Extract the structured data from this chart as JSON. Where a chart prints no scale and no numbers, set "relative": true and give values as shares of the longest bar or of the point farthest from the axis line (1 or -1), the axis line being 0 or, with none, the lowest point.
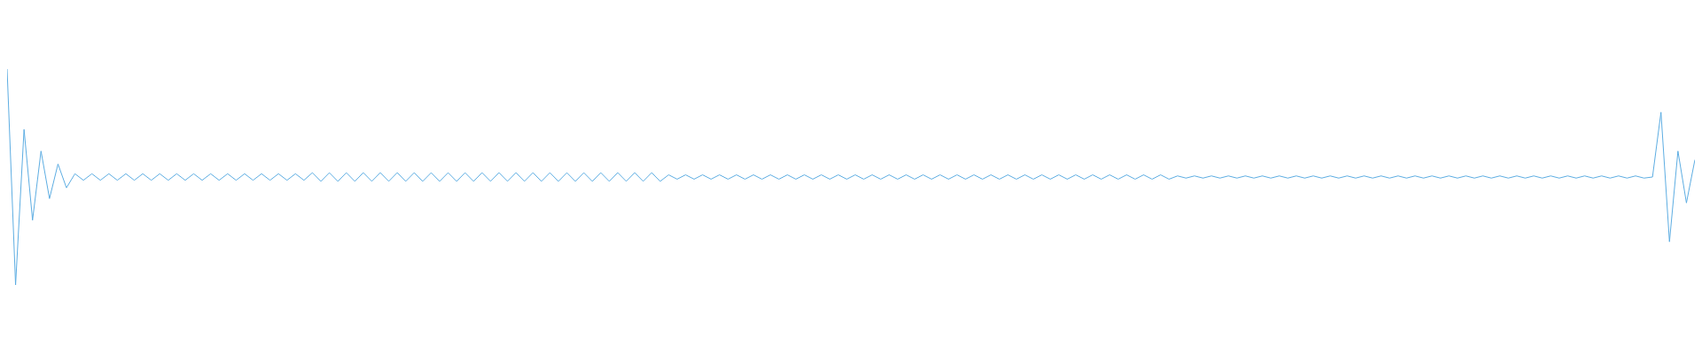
{
  "chart_data": {
    "type": "line",
    "relative": true,
    "legend": false,
    "marker": "none",
    "line_style": "solid",
    "categories": [
      null,
      null,
      null,
      null,
      null,
      null,
      null,
      null,
      null,
      null,
      null,
      null,
      null,
      null,
      null,
      null,
      null,
      null,
      null,
      null,
      null,
      null,
      null,
      null,
      null,
      null,
      null,
      null,
      null,
      null,
      null,
      null,
      null,
      null,
      null,
      null,
      null,
      null,
      null,
      null,
      null,
      null,
      null,
      null,
      null,
      null,
      null,
      null,
      null,
      null,
      null,
      null,
      null,
      null,
      null,
      null,
      null,
      null,
      null,
      null,
      null,
      null,
      null,
      null,
      null,
      null,
      null,
      null,
      null,
      null,
      null,
      null,
      null,
      null,
      null,
      null,
      null,
      null,
      null,
      null,
      null,
      null,
      null,
      null,
      null,
      null,
      null,
      null,
      null,
      null,
      null,
      null,
      null,
      null,
      null,
      null,
      null,
      null,
      null,
      null,
      null,
      null,
      null,
      null,
      null,
      null,
      null,
      null,
      null,
      null,
      null,
      null,
      null,
      null,
      null,
      null,
      null,
      null,
      null,
      null,
      null,
      null,
      null,
      null,
      null,
      null,
      null,
      null,
      null,
      null,
      null,
      null,
      null,
      null,
      null,
      null,
      null,
      null,
      null,
      null,
      null,
      null,
      null,
      null,
      null,
      null,
      null,
      null,
      null,
      null,
      null,
      null,
      null,
      null,
      null,
      null,
      null,
      null,
      null,
      null,
      null,
      null,
      null,
      null,
      null,
      null,
      null,
      null,
      null,
      null,
      null,
      null,
      null,
      null,
      null,
      null,
      null,
      null,
      null,
      null,
      null,
      null,
      null,
      null,
      null,
      null,
      null,
      null,
      null,
      null,
      null,
      null,
      null,
      null,
      null,
      null,
      null,
      null,
      null,
      null
    ],
    "series": [
      {
        "color": "#5dade2",
        "values": [
          1.0,
          0.0,
          0.72,
          0.3,
          0.62,
          0.4,
          0.56,
          0.45,
          0.515,
          0.485,
          0.515,
          0.485,
          0.515,
          0.485,
          0.515,
          0.485,
          0.515,
          0.485,
          0.515,
          0.485,
          0.515,
          0.485,
          0.515,
          0.485,
          0.515,
          0.485,
          0.515,
          0.485,
          0.515,
          0.485,
          0.515,
          0.485,
          0.515,
          0.485,
          0.515,
          0.485,
          0.52,
          0.48,
          0.52,
          0.48,
          0.52,
          0.48,
          0.52,
          0.48,
          0.52,
          0.48,
          0.52,
          0.48,
          0.52,
          0.48,
          0.52,
          0.48,
          0.52,
          0.48,
          0.52,
          0.48,
          0.52,
          0.48,
          0.52,
          0.48,
          0.52,
          0.48,
          0.52,
          0.48,
          0.52,
          0.48,
          0.52,
          0.48,
          0.52,
          0.48,
          0.52,
          0.48,
          0.52,
          0.48,
          0.52,
          0.48,
          0.52,
          0.48,
          0.51,
          0.49,
          0.51,
          0.49,
          0.51,
          0.49,
          0.51,
          0.49,
          0.51,
          0.49,
          0.51,
          0.49,
          0.51,
          0.49,
          0.51,
          0.49,
          0.51,
          0.49,
          0.51,
          0.49,
          0.51,
          0.49,
          0.51,
          0.49,
          0.51,
          0.49,
          0.51,
          0.49,
          0.51,
          0.49,
          0.51,
          0.49,
          0.51,
          0.49,
          0.51,
          0.49,
          0.51,
          0.49,
          0.51,
          0.49,
          0.51,
          0.49,
          0.51,
          0.49,
          0.51,
          0.49,
          0.51,
          0.49,
          0.51,
          0.49,
          0.51,
          0.49,
          0.51,
          0.49,
          0.51,
          0.49,
          0.51,
          0.49,
          0.51,
          0.49,
          0.505,
          0.495,
          0.505,
          0.495,
          0.505,
          0.495,
          0.505,
          0.495,
          0.505,
          0.495,
          0.505,
          0.495,
          0.505,
          0.495,
          0.505,
          0.495,
          0.505,
          0.495,
          0.505,
          0.495,
          0.505,
          0.495,
          0.505,
          0.495,
          0.505,
          0.495,
          0.505,
          0.495,
          0.505,
          0.495,
          0.505,
          0.495,
          0.505,
          0.495,
          0.505,
          0.495,
          0.505,
          0.495,
          0.505,
          0.495,
          0.505,
          0.495,
          0.505,
          0.495,
          0.505,
          0.495,
          0.505,
          0.495,
          0.505,
          0.495,
          0.505,
          0.495,
          0.505,
          0.495,
          0.505,
          0.495,
          0.5,
          0.8,
          0.2,
          0.62,
          0.38,
          0.58
        ]
      }
    ]
  }
}
